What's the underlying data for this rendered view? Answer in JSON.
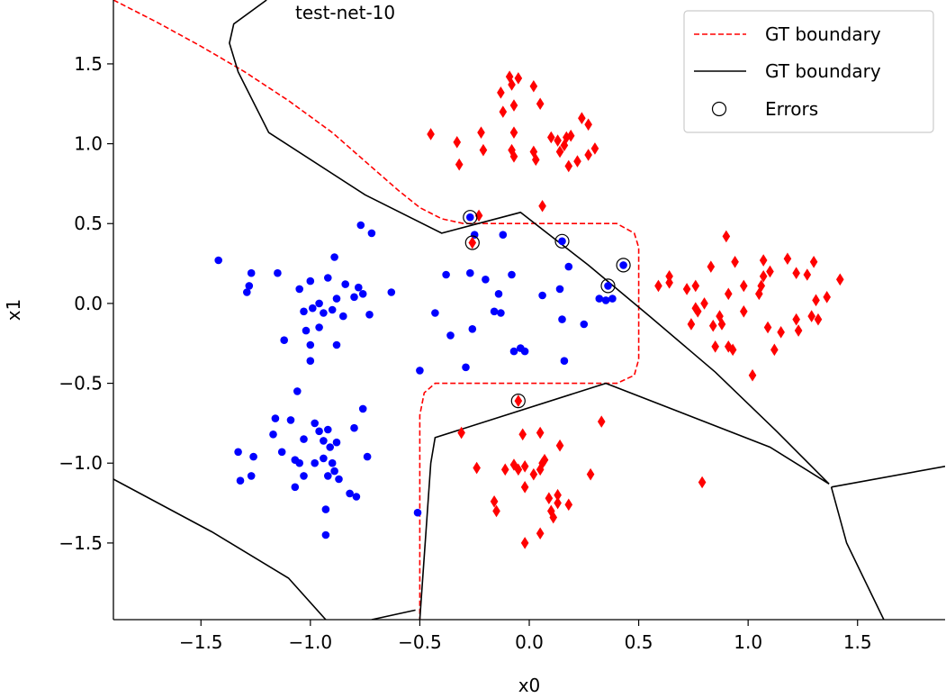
{
  "chart_data": {
    "type": "scatter",
    "title": "test-net-10",
    "xlabel": "x0",
    "ylabel": "x1",
    "xlim": [
      -1.9,
      1.9
    ],
    "ylim": [
      -1.98,
      1.9
    ],
    "x_ticks": [
      -1.5,
      -1.0,
      -0.5,
      0.0,
      0.5,
      1.0,
      1.5
    ],
    "x_tick_labels": [
      "−1.5",
      "−1.0",
      "−0.5",
      "0.0",
      "0.5",
      "1.0",
      "1.5"
    ],
    "y_ticks": [
      1.5,
      1.0,
      0.5,
      0.0,
      -0.5,
      -1.0,
      -1.5
    ],
    "y_tick_labels": [
      "1.5",
      "1.0",
      "0.5",
      "0.0",
      "−0.5",
      "−1.0",
      "−1.5"
    ],
    "grid": false,
    "legend": {
      "placement": "top-right",
      "entries": [
        {
          "label": "GT boundary",
          "style": "red-dashed-line",
          "color": "#ff0000"
        },
        {
          "label": "GT boundary",
          "style": "black-solid-line",
          "color": "#000000"
        },
        {
          "label": "Errors",
          "style": "open-circle",
          "color": "#000000"
        }
      ]
    },
    "colors": {
      "class_blue": "#0000ff",
      "class_red": "#ff0000",
      "boundary_gt": "#ff0000",
      "boundary_net": "#000000"
    },
    "boundaries": {
      "gt_dashed": [
        [
          -1.9,
          1.9
        ],
        [
          -1.7,
          1.76
        ],
        [
          -1.5,
          1.61
        ],
        [
          -1.3,
          1.45
        ],
        [
          -1.1,
          1.27
        ],
        [
          -0.9,
          1.07
        ],
        [
          -0.75,
          0.89
        ],
        [
          -0.6,
          0.71
        ],
        [
          -0.5,
          0.6
        ],
        [
          -0.4,
          0.53
        ],
        [
          -0.3,
          0.5
        ],
        [
          0.4,
          0.5
        ],
        [
          0.48,
          0.44
        ],
        [
          0.5,
          0.35
        ],
        [
          0.5,
          -0.35
        ],
        [
          0.48,
          -0.45
        ],
        [
          0.4,
          -0.5
        ],
        [
          -0.43,
          -0.5
        ],
        [
          -0.48,
          -0.56
        ],
        [
          -0.5,
          -0.7
        ],
        [
          -0.5,
          -1.98
        ]
      ],
      "net_solid": [
        [
          [
            -1.2,
            1.9
          ],
          [
            -1.35,
            1.75
          ],
          [
            -1.37,
            1.63
          ],
          [
            -1.33,
            1.45
          ],
          [
            -1.19,
            1.07
          ],
          [
            -0.75,
            0.68
          ],
          [
            -0.4,
            0.44
          ],
          [
            -0.04,
            0.57
          ],
          [
            0.27,
            0.24
          ],
          [
            0.55,
            -0.08
          ],
          [
            0.85,
            -0.43
          ],
          [
            1.13,
            -0.8
          ],
          [
            1.37,
            -1.13
          ],
          [
            1.1,
            -0.9
          ],
          [
            0.35,
            -0.5
          ],
          [
            -0.43,
            -0.84
          ],
          [
            -0.45,
            -1.0
          ],
          [
            -0.5,
            -1.98
          ]
        ],
        [
          [
            1.38,
            -1.15
          ],
          [
            1.9,
            -1.02
          ]
        ],
        [
          [
            1.38,
            -1.15
          ],
          [
            1.45,
            -1.5
          ],
          [
            1.62,
            -1.98
          ]
        ],
        [
          [
            -1.9,
            -1.1
          ],
          [
            -1.45,
            -1.43
          ],
          [
            -1.1,
            -1.72
          ],
          [
            -0.93,
            -1.98
          ]
        ],
        [
          [
            -0.72,
            -1.98
          ],
          [
            -0.52,
            -1.92
          ]
        ]
      ]
    },
    "series": [
      {
        "marker": "circle",
        "color": "#0000ff",
        "points": [
          [
            -1.42,
            0.27
          ],
          [
            -1.27,
            0.19
          ],
          [
            -1.28,
            0.11
          ],
          [
            -1.29,
            0.07
          ],
          [
            -1.15,
            0.19
          ],
          [
            -1.05,
            0.09
          ],
          [
            -1.03,
            -0.05
          ],
          [
            -1.02,
            -0.17
          ],
          [
            -1.0,
            0.14
          ],
          [
            -0.99,
            -0.03
          ],
          [
            -0.96,
            -0.15
          ],
          [
            -0.94,
            -0.06
          ],
          [
            -0.92,
            0.16
          ],
          [
            -0.9,
            -0.04
          ],
          [
            -0.88,
            0.03
          ],
          [
            -0.85,
            -0.08
          ],
          [
            -0.84,
            0.12
          ],
          [
            -0.8,
            0.04
          ],
          [
            -0.78,
            0.1
          ],
          [
            -0.76,
            0.06
          ],
          [
            -0.72,
            0.44
          ],
          [
            -0.77,
            0.49
          ],
          [
            -0.73,
            -0.07
          ],
          [
            -0.63,
            0.07
          ],
          [
            -0.96,
            0.0
          ],
          [
            -0.89,
            0.29
          ],
          [
            -1.12,
            -0.23
          ],
          [
            -1.0,
            -0.26
          ],
          [
            -0.88,
            -0.26
          ],
          [
            -1.0,
            -0.36
          ],
          [
            -1.06,
            -0.55
          ],
          [
            -1.16,
            -0.72
          ],
          [
            -1.09,
            -0.73
          ],
          [
            -1.03,
            -0.85
          ],
          [
            -0.98,
            -0.75
          ],
          [
            -0.96,
            -0.8
          ],
          [
            -0.94,
            -0.86
          ],
          [
            -0.91,
            -0.9
          ],
          [
            -0.88,
            -0.87
          ],
          [
            -0.76,
            -0.66
          ],
          [
            -0.92,
            -0.79
          ],
          [
            -0.8,
            -0.78
          ],
          [
            -1.33,
            -0.93
          ],
          [
            -1.26,
            -0.96
          ],
          [
            -1.27,
            -1.08
          ],
          [
            -1.13,
            -0.93
          ],
          [
            -1.07,
            -0.98
          ],
          [
            -1.05,
            -1.0
          ],
          [
            -1.03,
            -1.08
          ],
          [
            -0.98,
            -1.0
          ],
          [
            -0.94,
            -0.97
          ],
          [
            -0.92,
            -1.08
          ],
          [
            -0.89,
            -1.05
          ],
          [
            -0.87,
            -1.1
          ],
          [
            -0.9,
            -1.0
          ],
          [
            -0.74,
            -0.96
          ],
          [
            -1.17,
            -0.82
          ],
          [
            -1.32,
            -1.11
          ],
          [
            -1.07,
            -1.15
          ],
          [
            -0.82,
            -1.19
          ],
          [
            -0.79,
            -1.21
          ],
          [
            -0.93,
            -1.29
          ],
          [
            -0.93,
            -1.45
          ],
          [
            -0.51,
            -1.31
          ],
          [
            -0.5,
            -0.42
          ],
          [
            -0.43,
            -0.06
          ],
          [
            -0.38,
            0.18
          ],
          [
            -0.36,
            -0.2
          ],
          [
            -0.29,
            -0.4
          ],
          [
            -0.27,
            0.19
          ],
          [
            -0.26,
            -0.16
          ],
          [
            -0.25,
            0.43
          ],
          [
            -0.2,
            0.15
          ],
          [
            -0.16,
            -0.05
          ],
          [
            -0.14,
            0.06
          ],
          [
            -0.13,
            -0.06
          ],
          [
            -0.12,
            0.43
          ],
          [
            -0.08,
            0.18
          ],
          [
            -0.07,
            -0.3
          ],
          [
            -0.04,
            -0.28
          ],
          [
            -0.02,
            -0.3
          ],
          [
            0.06,
            0.05
          ],
          [
            0.14,
            0.09
          ],
          [
            0.15,
            -0.1
          ],
          [
            0.16,
            -0.36
          ],
          [
            0.18,
            0.23
          ],
          [
            0.25,
            -0.13
          ],
          [
            0.32,
            0.03
          ],
          [
            0.35,
            0.02
          ],
          [
            0.38,
            0.03
          ],
          [
            -0.27,
            0.54
          ],
          [
            0.15,
            0.39
          ],
          [
            0.36,
            0.11
          ],
          [
            0.43,
            0.24
          ]
        ]
      },
      {
        "marker": "diamond",
        "color": "#ff0000",
        "points": [
          [
            -0.45,
            1.06
          ],
          [
            -0.33,
            1.01
          ],
          [
            -0.32,
            0.87
          ],
          [
            -0.22,
            1.07
          ],
          [
            -0.21,
            0.96
          ],
          [
            -0.13,
            1.32
          ],
          [
            -0.12,
            1.2
          ],
          [
            -0.09,
            1.42
          ],
          [
            -0.08,
            1.37
          ],
          [
            -0.05,
            1.41
          ],
          [
            -0.07,
            1.24
          ],
          [
            -0.07,
            1.07
          ],
          [
            -0.08,
            0.96
          ],
          [
            -0.07,
            0.92
          ],
          [
            0.02,
            0.95
          ],
          [
            0.03,
            0.9
          ],
          [
            0.02,
            1.36
          ],
          [
            0.05,
            1.25
          ],
          [
            0.06,
            0.61
          ],
          [
            0.1,
            1.04
          ],
          [
            0.13,
            1.02
          ],
          [
            0.14,
            0.95
          ],
          [
            0.16,
            0.99
          ],
          [
            0.17,
            1.04
          ],
          [
            0.18,
            0.86
          ],
          [
            0.19,
            1.05
          ],
          [
            0.22,
            0.89
          ],
          [
            0.24,
            1.16
          ],
          [
            0.27,
            0.93
          ],
          [
            0.27,
            1.12
          ],
          [
            0.3,
            0.97
          ],
          [
            -0.23,
            0.55
          ],
          [
            0.59,
            0.11
          ],
          [
            0.64,
            0.13
          ],
          [
            0.64,
            0.17
          ],
          [
            0.72,
            0.09
          ],
          [
            0.74,
            -0.13
          ],
          [
            0.76,
            0.11
          ],
          [
            0.76,
            -0.03
          ],
          [
            0.77,
            -0.05
          ],
          [
            0.8,
            0.0
          ],
          [
            0.83,
            0.23
          ],
          [
            0.84,
            -0.14
          ],
          [
            0.85,
            -0.27
          ],
          [
            0.87,
            -0.08
          ],
          [
            0.88,
            -0.13
          ],
          [
            0.9,
            0.42
          ],
          [
            0.91,
            0.06
          ],
          [
            0.91,
            -0.27
          ],
          [
            0.93,
            -0.29
          ],
          [
            0.94,
            0.26
          ],
          [
            0.98,
            -0.05
          ],
          [
            0.98,
            0.11
          ],
          [
            1.02,
            -0.45
          ],
          [
            1.05,
            0.06
          ],
          [
            1.06,
            0.11
          ],
          [
            1.07,
            0.17
          ],
          [
            1.07,
            0.27
          ],
          [
            1.09,
            -0.15
          ],
          [
            1.1,
            0.2
          ],
          [
            1.12,
            -0.29
          ],
          [
            1.15,
            -0.18
          ],
          [
            1.18,
            0.28
          ],
          [
            1.22,
            0.19
          ],
          [
            1.22,
            -0.1
          ],
          [
            1.23,
            -0.17
          ],
          [
            1.27,
            0.18
          ],
          [
            1.29,
            -0.08
          ],
          [
            1.3,
            0.26
          ],
          [
            1.31,
            0.02
          ],
          [
            1.32,
            -0.1
          ],
          [
            1.36,
            0.04
          ],
          [
            1.42,
            0.15
          ],
          [
            -0.31,
            -0.81
          ],
          [
            -0.24,
            -1.03
          ],
          [
            -0.16,
            -1.24
          ],
          [
            -0.15,
            -1.3
          ],
          [
            -0.11,
            -1.04
          ],
          [
            -0.07,
            -1.01
          ],
          [
            -0.05,
            -1.04
          ],
          [
            -0.03,
            -0.82
          ],
          [
            -0.02,
            -1.02
          ],
          [
            -0.02,
            -1.15
          ],
          [
            -0.02,
            -1.5
          ],
          [
            0.02,
            -1.07
          ],
          [
            0.05,
            -1.04
          ],
          [
            0.05,
            -0.81
          ],
          [
            0.06,
            -1.0
          ],
          [
            0.07,
            -0.98
          ],
          [
            0.09,
            -1.22
          ],
          [
            0.1,
            -1.3
          ],
          [
            0.11,
            -1.34
          ],
          [
            0.13,
            -1.2
          ],
          [
            0.13,
            -1.25
          ],
          [
            0.14,
            -0.89
          ],
          [
            0.18,
            -1.26
          ],
          [
            0.05,
            -1.44
          ],
          [
            0.28,
            -1.07
          ],
          [
            0.33,
            -0.74
          ],
          [
            0.79,
            -1.12
          ],
          [
            -0.26,
            0.38
          ],
          [
            -0.05,
            -0.61
          ]
        ]
      }
    ],
    "errors": [
      [
        -0.27,
        0.54
      ],
      [
        -0.26,
        0.38
      ],
      [
        0.15,
        0.39
      ],
      [
        0.43,
        0.24
      ],
      [
        0.36,
        0.11
      ],
      [
        -0.05,
        -0.61
      ]
    ]
  }
}
